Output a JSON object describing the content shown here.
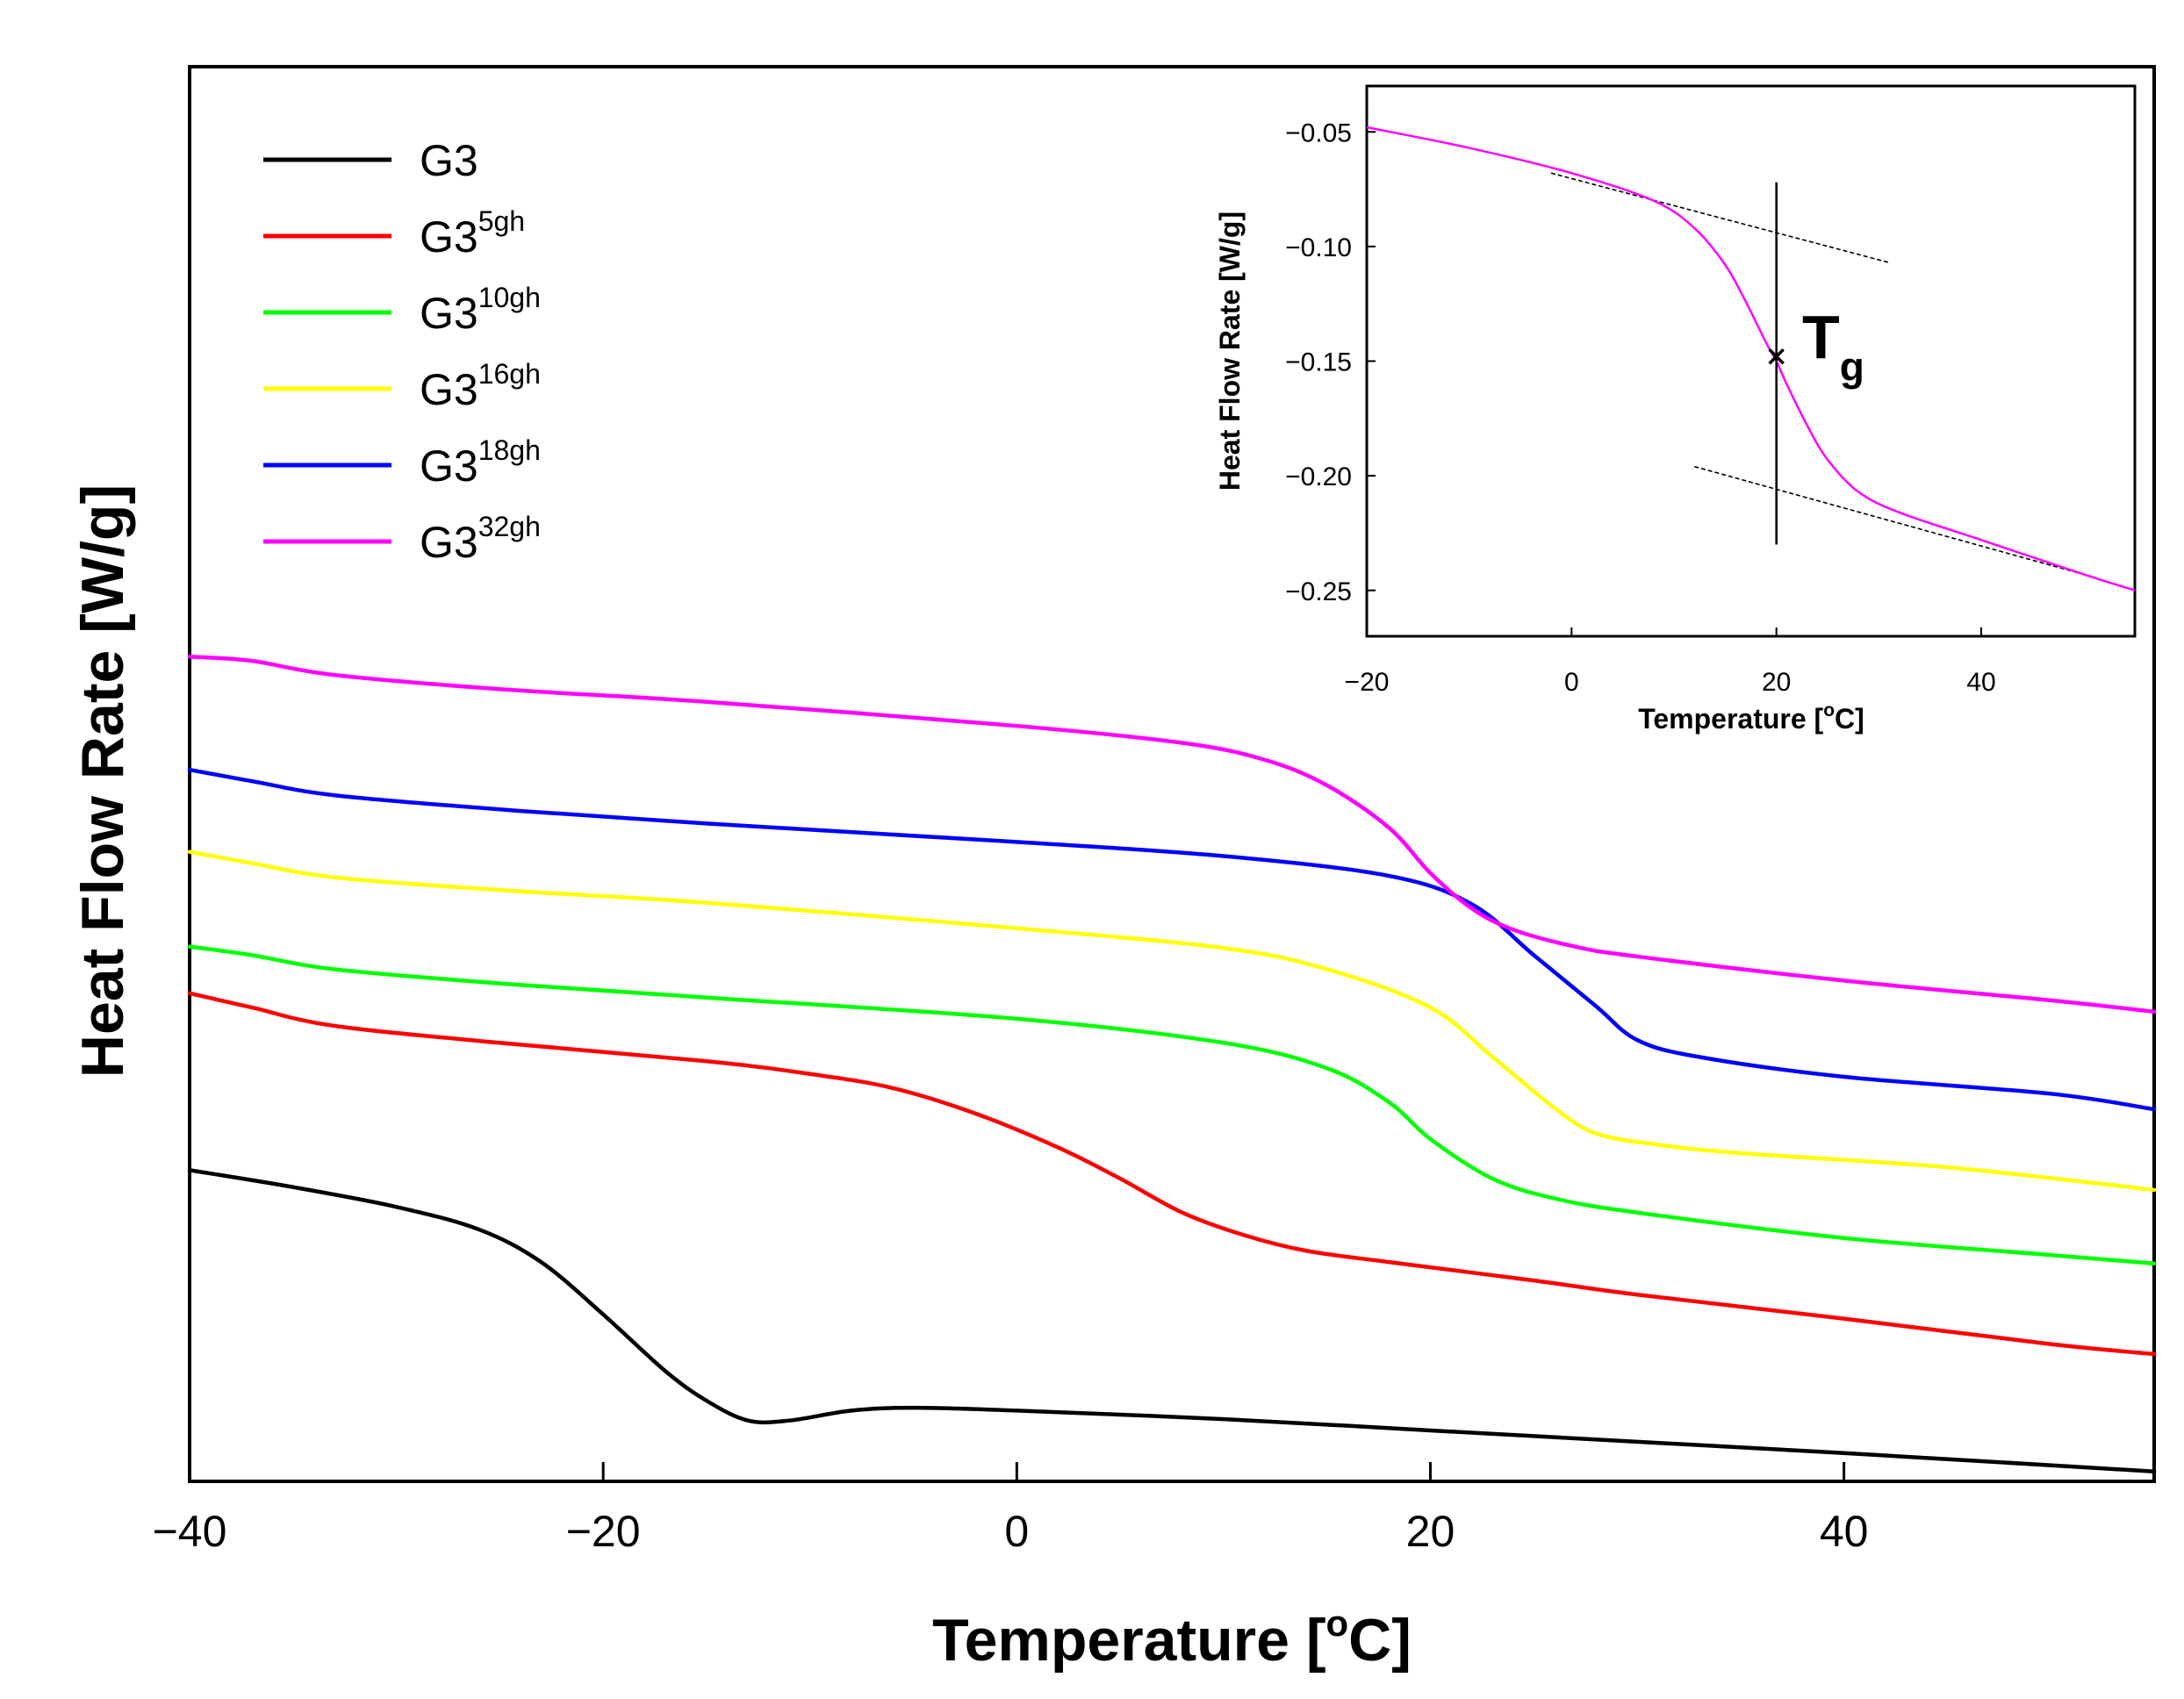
{
  "chart_data": [
    {
      "type": "line",
      "panel": "main",
      "title": "",
      "xlabel": "Temperature [°C]",
      "xlabel_prefix": "Temperature [",
      "xlabel_unit_sup": "o",
      "xlabel_suffix": "C]",
      "ylabel": "Heat Flow Rate [W/g]",
      "xlim": [
        -40,
        55
      ],
      "ylim": [
        0,
        10
      ],
      "xticks": [
        -40,
        -20,
        0,
        20,
        40
      ],
      "xtick_labels": [
        "−40",
        "−20",
        "0",
        "20",
        "40"
      ],
      "yticks_shown": false,
      "grid": false,
      "legend_position": "top-left",
      "series": [
        {
          "name": "G3",
          "base": "G3",
          "sup": "",
          "color": "#000000",
          "x": [
            -40,
            -35,
            -30,
            -26,
            -23,
            -20,
            -17,
            -15,
            -13,
            -11,
            -8,
            -5,
            0,
            10,
            20,
            30,
            40,
            55
          ],
          "y": [
            2.2,
            2.08,
            1.94,
            1.78,
            1.55,
            1.18,
            0.78,
            0.57,
            0.43,
            0.43,
            0.5,
            0.52,
            0.5,
            0.44,
            0.36,
            0.28,
            0.2,
            0.07
          ]
        },
        {
          "name": "G3 5gh",
          "base": "G3",
          "sup": "5gh",
          "color": "#ff0000",
          "x": [
            -40,
            -37,
            -33,
            -25,
            -15,
            -10,
            -6,
            -2,
            2,
            5,
            8,
            11,
            14,
            18,
            25,
            30,
            40,
            50,
            55
          ],
          "y": [
            3.45,
            3.35,
            3.22,
            3.1,
            2.97,
            2.88,
            2.78,
            2.6,
            2.36,
            2.14,
            1.9,
            1.74,
            1.63,
            1.55,
            1.42,
            1.32,
            1.15,
            0.97,
            0.9
          ]
        },
        {
          "name": "G3 10gh",
          "base": "G3",
          "sup": "10gh",
          "color": "#00ff00",
          "x": [
            -40,
            -37,
            -33,
            -25,
            -15,
            0,
            10,
            15,
            18,
            20,
            23,
            26,
            30,
            40,
            50,
            55
          ],
          "y": [
            3.78,
            3.72,
            3.62,
            3.52,
            3.42,
            3.27,
            3.1,
            2.92,
            2.68,
            2.42,
            2.14,
            2.0,
            1.9,
            1.72,
            1.6,
            1.54
          ]
        },
        {
          "name": "G3 16gh",
          "base": "G3",
          "sup": "16gh",
          "color": "#ffff00",
          "x": [
            -40,
            -37,
            -33,
            -25,
            -15,
            0,
            10,
            15,
            20,
            23,
            26,
            28,
            31,
            35,
            45,
            55
          ],
          "y": [
            4.45,
            4.37,
            4.27,
            4.18,
            4.09,
            3.91,
            3.77,
            3.62,
            3.35,
            3.0,
            2.64,
            2.46,
            2.38,
            2.32,
            2.22,
            2.06
          ]
        },
        {
          "name": "G3 18gh",
          "base": "G3",
          "sup": "18gh",
          "color": "#0000ff",
          "x": [
            -40,
            -37,
            -33,
            -25,
            -15,
            0,
            10,
            18,
            22,
            25,
            28,
            30,
            33,
            40,
            50,
            55
          ],
          "y": [
            5.03,
            4.95,
            4.85,
            4.75,
            4.65,
            4.52,
            4.42,
            4.28,
            4.08,
            3.72,
            3.36,
            3.12,
            3.0,
            2.86,
            2.74,
            2.63
          ]
        },
        {
          "name": "G3 32gh",
          "base": "G3",
          "sup": "32gh",
          "color": "#ff00ff",
          "x": [
            -40,
            -37,
            -33,
            -25,
            -15,
            0,
            8,
            12,
            15,
            18,
            20,
            22,
            24,
            27,
            30,
            40,
            50,
            55
          ],
          "y": [
            5.83,
            5.8,
            5.7,
            5.6,
            5.51,
            5.34,
            5.22,
            5.1,
            4.92,
            4.62,
            4.3,
            4.05,
            3.9,
            3.78,
            3.71,
            3.54,
            3.4,
            3.32
          ]
        }
      ]
    },
    {
      "type": "line",
      "panel": "inset",
      "title": "",
      "xlabel": "Temperature [°C]",
      "xlabel_prefix": "Temperature [",
      "xlabel_unit_sup": "o",
      "xlabel_suffix": "C]",
      "ylabel": "Heat Flow Rate [W/g]",
      "xlim": [
        -20,
        55
      ],
      "ylim": [
        -0.27,
        -0.03
      ],
      "xticks": [
        -20,
        0,
        20,
        40
      ],
      "xtick_labels": [
        "−20",
        "0",
        "20",
        "40"
      ],
      "yticks": [
        -0.05,
        -0.1,
        -0.15,
        -0.2,
        -0.25
      ],
      "ytick_labels": [
        "−0.05",
        "−0.10",
        "−0.15",
        "−0.20",
        "−0.25"
      ],
      "grid": false,
      "series": [
        {
          "name": "G3 32gh",
          "color": "#ff00ff",
          "x": [
            -20,
            -10,
            0,
            8,
            12,
            15,
            17,
            19,
            20,
            21,
            23,
            25,
            28,
            32,
            40,
            50,
            55
          ],
          "y": [
            -0.048,
            -0.057,
            -0.068,
            -0.08,
            -0.092,
            -0.108,
            -0.124,
            -0.142,
            -0.15,
            -0.16,
            -0.178,
            -0.193,
            -0.207,
            -0.216,
            -0.228,
            -0.243,
            -0.25
          ]
        }
      ],
      "tangent_lines": [
        {
          "x": [
            -2,
            31
          ],
          "y": [
            -0.068,
            -0.107
          ]
        },
        {
          "x": [
            12,
            50
          ],
          "y": [
            -0.196,
            -0.243
          ]
        }
      ],
      "tg_marker": {
        "x": 20,
        "y": -0.148,
        "symbol": "x",
        "line_y_range": [
          -0.072,
          -0.23
        ]
      },
      "annotation": {
        "text": "T",
        "subscript": "g"
      }
    }
  ]
}
